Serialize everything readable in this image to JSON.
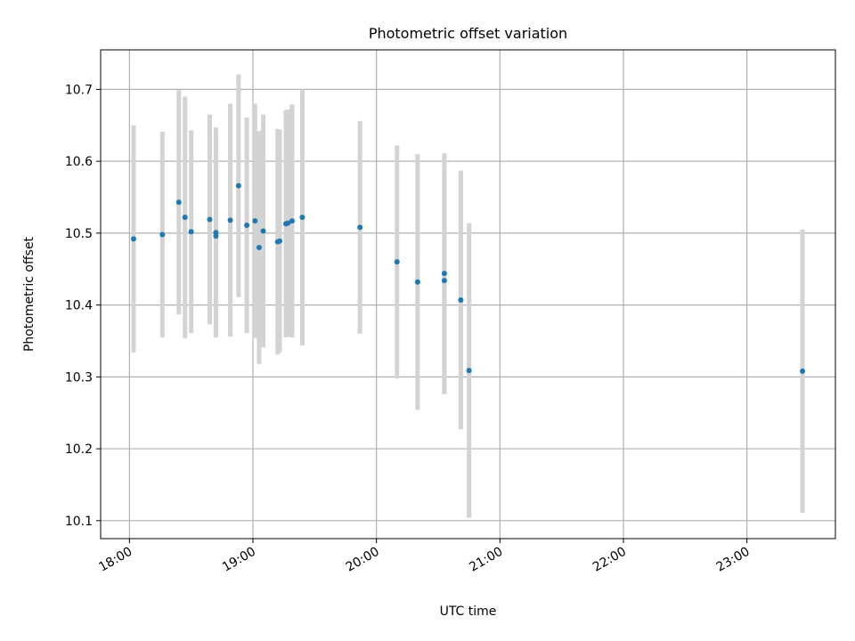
{
  "chart_data": {
    "type": "scatter",
    "title": "Photometric offset variation",
    "xlabel": "UTC time",
    "ylabel": "Photometric offset",
    "x_unit": "hours (UTC)",
    "xlim": [
      "17:46",
      "23:43"
    ],
    "ylim": [
      10.075,
      10.755
    ],
    "grid": true,
    "x_ticks": [
      "18:00",
      "19:00",
      "20:00",
      "21:00",
      "22:00",
      "23:00"
    ],
    "y_ticks": [
      "10.1",
      "10.2",
      "10.3",
      "10.4",
      "10.5",
      "10.6",
      "10.7"
    ],
    "marker_color": "#1f77b4",
    "errorbar_color": "#d3d3d3",
    "points": [
      {
        "t": "18:02",
        "y": 10.492,
        "err": 0.158
      },
      {
        "t": "18:16",
        "y": 10.498,
        "err": 0.143
      },
      {
        "t": "18:24",
        "y": 10.543,
        "err": 0.156
      },
      {
        "t": "18:27",
        "y": 10.522,
        "err": 0.168
      },
      {
        "t": "18:30",
        "y": 10.502,
        "err": 0.141
      },
      {
        "t": "18:39",
        "y": 10.519,
        "err": 0.146
      },
      {
        "t": "18:42",
        "y": 10.496,
        "err": 0.141
      },
      {
        "t": "18:42",
        "y": 10.501,
        "err": 0.146
      },
      {
        "t": "18:49",
        "y": 10.518,
        "err": 0.162
      },
      {
        "t": "18:53",
        "y": 10.566,
        "err": 0.155
      },
      {
        "t": "18:57",
        "y": 10.511,
        "err": 0.15
      },
      {
        "t": "19:01",
        "y": 10.517,
        "err": 0.163
      },
      {
        "t": "19:03",
        "y": 10.48,
        "err": 0.162
      },
      {
        "t": "19:05",
        "y": 10.503,
        "err": 0.162
      },
      {
        "t": "19:12",
        "y": 10.488,
        "err": 0.157
      },
      {
        "t": "19:13",
        "y": 10.489,
        "err": 0.155
      },
      {
        "t": "19:16",
        "y": 10.513,
        "err": 0.158
      },
      {
        "t": "19:17",
        "y": 10.514,
        "err": 0.158
      },
      {
        "t": "19:19",
        "y": 10.517,
        "err": 0.162
      },
      {
        "t": "19:24",
        "y": 10.522,
        "err": 0.178
      },
      {
        "t": "19:52",
        "y": 10.508,
        "err": 0.148
      },
      {
        "t": "20:10",
        "y": 10.46,
        "err": 0.162
      },
      {
        "t": "20:20",
        "y": 10.432,
        "err": 0.178
      },
      {
        "t": "20:33",
        "y": 10.434,
        "err": 0.158
      },
      {
        "t": "20:33",
        "y": 10.444,
        "err": 0.167
      },
      {
        "t": "20:41",
        "y": 10.407,
        "err": 0.18
      },
      {
        "t": "20:45",
        "y": 10.309,
        "err": 0.205
      },
      {
        "t": "23:27",
        "y": 10.308,
        "err": 0.197
      }
    ]
  }
}
